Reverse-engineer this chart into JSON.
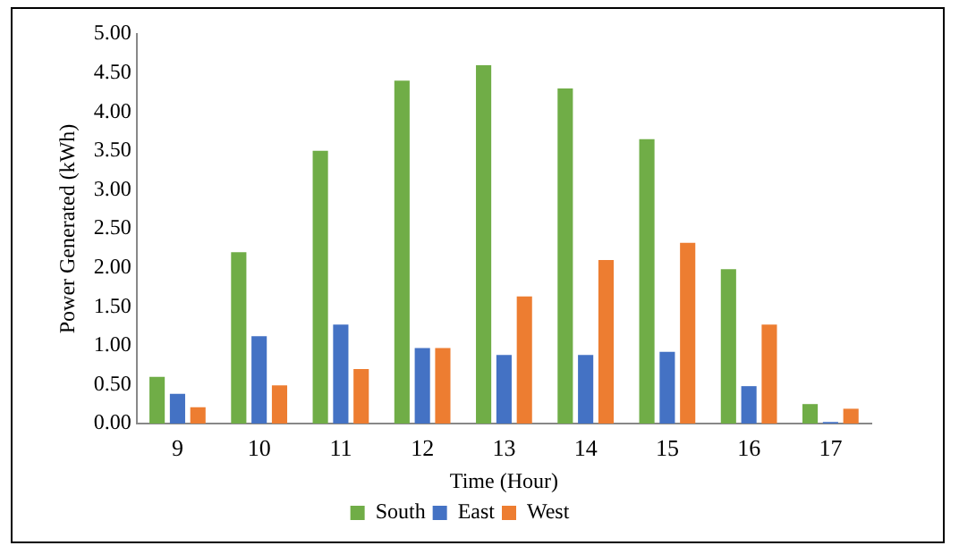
{
  "chart_data": {
    "type": "bar",
    "xlabel": "Time (Hour)",
    "ylabel": "Power Generated (kWh)",
    "categories": [
      "9",
      "10",
      "11",
      "12",
      "13",
      "14",
      "15",
      "16",
      "17"
    ],
    "series": [
      {
        "name": "South",
        "color": "#70ad47",
        "values": [
          0.6,
          2.2,
          3.5,
          4.4,
          4.6,
          4.3,
          3.65,
          1.98,
          0.25
        ]
      },
      {
        "name": "East",
        "color": "#4472c4",
        "values": [
          0.38,
          1.12,
          1.27,
          0.97,
          0.88,
          0.88,
          0.92,
          0.48,
          0.02
        ]
      },
      {
        "name": "West",
        "color": "#ed7d31",
        "values": [
          0.21,
          0.49,
          0.7,
          0.97,
          1.63,
          2.1,
          2.32,
          1.27,
          0.19
        ]
      }
    ],
    "ylim": [
      0,
      5
    ],
    "yticks": [
      {
        "value": 0,
        "label": "0.00"
      },
      {
        "value": 0.5,
        "label": "0.50"
      },
      {
        "value": 1,
        "label": "1.00"
      },
      {
        "value": 1.5,
        "label": "1.50"
      },
      {
        "value": 2,
        "label": "2.00"
      },
      {
        "value": 2.5,
        "label": "2.50"
      },
      {
        "value": 3,
        "label": "3.00"
      },
      {
        "value": 3.5,
        "label": "3.50"
      },
      {
        "value": 4,
        "label": "4.00"
      },
      {
        "value": 4.5,
        "label": "4.50"
      },
      {
        "value": 5,
        "label": "5.00"
      }
    ],
    "grid": false,
    "legend": "bottom"
  }
}
